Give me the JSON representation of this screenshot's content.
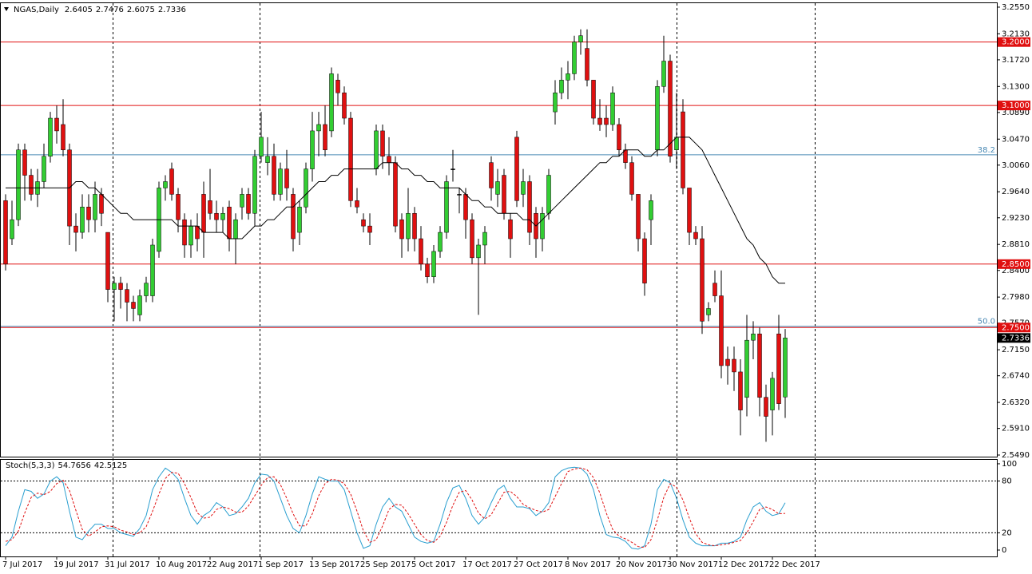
{
  "chart_data": {
    "type": "candlestick",
    "title": "NGAS,Daily",
    "categories": [
      "7 Jul 2017",
      null,
      null,
      null,
      null,
      null,
      null,
      null,
      "19 Jul 2017",
      null,
      null,
      null,
      null,
      null,
      null,
      null,
      "31 Jul 2017",
      null,
      null,
      null,
      null,
      null,
      null,
      null,
      "10 Aug 2017",
      null,
      null,
      null,
      null,
      null,
      null,
      null,
      "22 Aug 2017",
      null,
      null,
      null,
      null,
      null,
      null,
      null,
      "1 Sep 2017",
      null,
      null,
      null,
      null,
      null,
      null,
      null,
      "13 Sep 2017",
      null,
      null,
      null,
      null,
      null,
      null,
      null,
      "25 Sep 2017",
      null,
      null,
      null,
      null,
      null,
      null,
      null,
      "5 Oct 2017",
      null,
      null,
      null,
      null,
      null,
      null,
      null,
      "17 Oct 2017",
      null,
      null,
      null,
      null,
      null,
      null,
      null,
      "27 Oct 2017",
      null,
      null,
      null,
      null,
      null,
      null,
      null,
      "8 Nov 2017",
      null,
      null,
      null,
      null,
      null,
      null,
      null,
      "20 Nov 2017",
      null,
      null,
      null,
      null,
      null,
      null,
      null,
      "30 Nov 2017",
      null,
      null,
      null,
      null,
      null,
      null,
      null,
      "12 Dec 2017",
      null,
      null,
      null,
      null,
      null,
      null,
      null,
      "22 Dec 2017",
      null,
      null
    ],
    "open": [
      2.95,
      2.89,
      2.92,
      3.03,
      2.99,
      2.96,
      2.98,
      3.02,
      3.08,
      3.07,
      3.03,
      2.91,
      2.9,
      2.94,
      2.92,
      2.96,
      2.9,
      2.81,
      2.82,
      2.81,
      2.79,
      2.77,
      2.8,
      2.8,
      2.87,
      2.97,
      3.0,
      2.96,
      2.92,
      2.88,
      2.91,
      2.96,
      2.95,
      2.93,
      2.92,
      2.94,
      2.89,
      2.94,
      2.96,
      2.93,
      3.02,
      3.01,
      3.02,
      2.96,
      3.0,
      2.96,
      2.9,
      2.94,
      3.0,
      3.06,
      3.07,
      3.06,
      3.14,
      3.12,
      3.08,
      2.95,
      2.92,
      2.91,
      3.0,
      3.06,
      3.02,
      3.01,
      2.92,
      2.89,
      2.93,
      2.89,
      2.85,
      2.83,
      2.87,
      2.9,
      3.0,
      2.96,
      2.96,
      2.92,
      2.86,
      2.88,
      3.01,
      2.96,
      2.99,
      2.92,
      3.05,
      2.96,
      2.98,
      2.93,
      2.89,
      2.93,
      3.09,
      3.12,
      3.14,
      3.15,
      3.2,
      3.19,
      3.14,
      3.08,
      3.08,
      3.07,
      3.07,
      3.03,
      3.01,
      2.96,
      2.89,
      2.92,
      3.03,
      3.13,
      3.17,
      3.03,
      3.09,
      2.97,
      2.9,
      2.89,
      2.77,
      2.82,
      2.8,
      2.7,
      2.7,
      2.68,
      2.64,
      2.73,
      2.74,
      2.64,
      2.62,
      2.74,
      2.6405
    ],
    "high": [
      2.96,
      2.95,
      3.04,
      3.04,
      3.0,
      3.0,
      3.04,
      3.09,
      3.1,
      3.11,
      3.04,
      2.93,
      2.96,
      2.96,
      2.98,
      2.97,
      2.9,
      2.83,
      2.83,
      2.82,
      2.8,
      2.81,
      2.83,
      2.89,
      2.98,
      2.99,
      3.01,
      2.97,
      2.93,
      2.92,
      2.93,
      2.98,
      3.0,
      2.95,
      2.94,
      2.95,
      2.93,
      2.97,
      2.97,
      3.03,
      3.09,
      3.05,
      3.04,
      3.01,
      3.03,
      2.97,
      2.95,
      3.01,
      3.09,
      3.09,
      3.1,
      3.16,
      3.15,
      3.13,
      3.09,
      2.97,
      2.93,
      2.93,
      3.07,
      3.07,
      3.05,
      3.02,
      2.93,
      2.97,
      2.94,
      2.91,
      2.86,
      2.88,
      2.91,
      2.99,
      3.03,
      2.97,
      2.97,
      2.93,
      2.89,
      2.91,
      3.02,
      3.0,
      3.0,
      2.93,
      3.06,
      3.0,
      2.99,
      2.94,
      2.94,
      3.0,
      3.14,
      3.16,
      3.17,
      3.21,
      3.22,
      3.22,
      3.14,
      3.11,
      3.1,
      3.13,
      3.08,
      3.04,
      3.02,
      2.96,
      2.9,
      2.96,
      3.14,
      3.21,
      3.18,
      3.12,
      3.11,
      2.97,
      2.91,
      2.91,
      2.79,
      2.84,
      2.84,
      2.72,
      2.72,
      2.7,
      2.77,
      2.76,
      2.75,
      2.66,
      2.68,
      2.77,
      2.7476
    ],
    "low": [
      2.84,
      2.88,
      2.91,
      2.95,
      2.95,
      2.94,
      2.97,
      3.01,
      3.04,
      3.02,
      2.88,
      2.87,
      2.89,
      2.9,
      2.9,
      2.91,
      2.79,
      2.76,
      2.78,
      2.76,
      2.76,
      2.76,
      2.79,
      2.79,
      2.86,
      2.95,
      2.95,
      2.9,
      2.86,
      2.86,
      2.87,
      2.86,
      2.92,
      2.9,
      2.9,
      2.87,
      2.85,
      2.92,
      2.92,
      2.91,
      3.01,
      2.99,
      2.95,
      2.95,
      2.95,
      2.87,
      2.88,
      2.93,
      2.98,
      3.02,
      3.02,
      3.05,
      3.1,
      3.07,
      2.94,
      2.93,
      2.9,
      2.88,
      2.99,
      3.0,
      2.99,
      2.9,
      2.86,
      2.87,
      2.87,
      2.84,
      2.82,
      2.82,
      2.86,
      2.89,
      2.98,
      2.93,
      2.89,
      2.85,
      2.77,
      2.85,
      2.95,
      2.94,
      2.92,
      2.86,
      2.94,
      2.94,
      2.88,
      2.86,
      2.87,
      2.92,
      3.07,
      3.11,
      3.11,
      3.14,
      3.18,
      3.13,
      3.07,
      3.06,
      3.05,
      3.06,
      3.02,
      3.0,
      2.95,
      2.87,
      2.8,
      2.88,
      3.02,
      3.12,
      3.01,
      3.0,
      2.96,
      2.88,
      2.88,
      2.74,
      2.76,
      2.79,
      2.67,
      2.66,
      2.65,
      2.58,
      2.61,
      2.7,
      2.61,
      2.57,
      2.58,
      2.62,
      2.6075
    ],
    "close": [
      2.85,
      2.92,
      3.03,
      2.99,
      2.96,
      2.98,
      3.02,
      3.08,
      3.06,
      3.03,
      2.91,
      2.9,
      2.94,
      2.92,
      2.96,
      2.93,
      2.81,
      2.82,
      2.81,
      2.79,
      2.78,
      2.8,
      2.82,
      2.88,
      2.97,
      2.98,
      2.96,
      2.92,
      2.88,
      2.91,
      2.89,
      2.9,
      2.93,
      2.92,
      2.93,
      2.89,
      2.92,
      2.96,
      2.93,
      3.02,
      3.05,
      3.02,
      2.96,
      3.0,
      2.97,
      2.89,
      2.94,
      3.0,
      3.06,
      3.07,
      3.03,
      3.15,
      3.12,
      3.08,
      2.95,
      2.94,
      2.91,
      2.9,
      3.06,
      3.02,
      3.01,
      2.91,
      2.89,
      2.93,
      2.89,
      2.85,
      2.83,
      2.87,
      2.9,
      2.98,
      3.0,
      2.96,
      2.92,
      2.86,
      2.88,
      2.9,
      2.97,
      2.98,
      2.93,
      2.89,
      2.95,
      2.98,
      2.9,
      2.89,
      2.93,
      2.99,
      3.12,
      3.14,
      3.15,
      3.2,
      3.21,
      3.14,
      3.08,
      3.07,
      3.07,
      3.12,
      3.03,
      3.01,
      2.96,
      2.89,
      2.82,
      2.95,
      3.13,
      3.17,
      3.02,
      3.05,
      2.97,
      2.9,
      2.89,
      2.76,
      2.78,
      2.8,
      2.69,
      2.69,
      2.68,
      2.62,
      2.73,
      2.74,
      2.64,
      2.61,
      2.67,
      2.63,
      2.7336
    ],
    "up_color": "#32cd32",
    "down_color": "#e01010",
    "ma": {
      "color": "#000000",
      "values": [
        2.97,
        2.97,
        2.97,
        2.97,
        2.97,
        2.97,
        2.97,
        2.97,
        2.97,
        2.97,
        2.97,
        2.98,
        2.98,
        2.97,
        2.97,
        2.96,
        2.95,
        2.94,
        2.93,
        2.93,
        2.92,
        2.92,
        2.92,
        2.92,
        2.92,
        2.92,
        2.92,
        2.91,
        2.91,
        2.91,
        2.91,
        2.9,
        2.9,
        2.9,
        2.9,
        2.89,
        2.89,
        2.89,
        2.9,
        2.91,
        2.91,
        2.92,
        2.92,
        2.93,
        2.94,
        2.94,
        2.95,
        2.96,
        2.97,
        2.98,
        2.98,
        2.99,
        2.99,
        3.0,
        3.0,
        3.0,
        3.0,
        3.0,
        3.0,
        3.01,
        3.01,
        3.01,
        3.0,
        3.0,
        2.99,
        2.99,
        2.98,
        2.98,
        2.97,
        2.97,
        2.97,
        2.97,
        2.96,
        2.95,
        2.95,
        2.94,
        2.94,
        2.93,
        2.93,
        2.93,
        2.93,
        2.92,
        2.92,
        2.91,
        2.92,
        2.93,
        2.94,
        2.95,
        2.96,
        2.97,
        2.98,
        2.99,
        3.0,
        3.01,
        3.01,
        3.02,
        3.02,
        3.03,
        3.03,
        3.03,
        3.02,
        3.02,
        3.03,
        3.03,
        3.04,
        3.05,
        3.05,
        3.05,
        3.04,
        3.03,
        3.01,
        2.99,
        2.97,
        2.95,
        2.93,
        2.91,
        2.89,
        2.88,
        2.86,
        2.85,
        2.83,
        2.82,
        2.82
      ]
    },
    "levels": [
      {
        "value": 3.2,
        "label": "3.2000"
      },
      {
        "value": 3.1,
        "label": "3.1000"
      },
      {
        "value": 2.85,
        "label": "2.8500"
      },
      {
        "value": 2.75,
        "label": "2.7500"
      }
    ],
    "level_color": "#e01010",
    "fib": [
      {
        "name": "38.2",
        "value": 3.0223
      },
      {
        "name": "50.0",
        "value": 2.752
      }
    ],
    "fib_color": "#4a8ab5",
    "ylim": [
      2.5465,
      3.2625
    ],
    "yticks": [
      {
        "value": 3.255,
        "label": "3.2550"
      },
      {
        "value": 3.213,
        "label": "3.2130"
      },
      {
        "value": 3.172,
        "label": "3.1720"
      },
      {
        "value": 3.13,
        "label": "3.1300"
      },
      {
        "value": 3.089,
        "label": "3.0890"
      },
      {
        "value": 3.047,
        "label": "3.0470"
      },
      {
        "value": 3.006,
        "label": "3.0060"
      },
      {
        "value": 2.964,
        "label": "2.9640"
      },
      {
        "value": 2.923,
        "label": "2.9230"
      },
      {
        "value": 2.881,
        "label": "2.8810"
      },
      {
        "value": 2.84,
        "label": "2.8400"
      },
      {
        "value": 2.798,
        "label": "2.7980"
      },
      {
        "value": 2.757,
        "label": "2.7570"
      },
      {
        "value": 2.715,
        "label": "2.7150"
      },
      {
        "value": 2.674,
        "label": "2.6740"
      },
      {
        "value": 2.632,
        "label": "2.6320"
      },
      {
        "value": 2.591,
        "label": "2.5910"
      },
      {
        "value": 2.549,
        "label": "2.5490"
      }
    ],
    "indicator": {
      "title": "Stoch(5,3,3)",
      "series": [
        {
          "color": "#2a9fd0",
          "dash": false,
          "values": [
            5,
            15,
            45,
            70,
            68,
            60,
            65,
            80,
            85,
            78,
            45,
            15,
            12,
            22,
            30,
            30,
            25,
            25,
            20,
            18,
            16,
            25,
            40,
            70,
            85,
            95,
            90,
            82,
            60,
            40,
            30,
            40,
            45,
            55,
            50,
            40,
            42,
            50,
            60,
            78,
            88,
            87,
            80,
            60,
            40,
            25,
            20,
            40,
            65,
            85,
            82,
            80,
            80,
            70,
            45,
            20,
            2,
            5,
            30,
            50,
            60,
            50,
            45,
            30,
            15,
            10,
            8,
            10,
            30,
            55,
            72,
            75,
            60,
            40,
            30,
            38,
            55,
            70,
            75,
            60,
            50,
            50,
            48,
            40,
            45,
            55,
            85,
            92,
            95,
            96,
            95,
            88,
            70,
            40,
            18,
            15,
            14,
            10,
            2,
            1,
            5,
            30,
            70,
            82,
            78,
            60,
            35,
            15,
            8,
            5,
            5,
            5,
            8,
            8,
            10,
            15,
            35,
            50,
            55,
            45,
            40,
            42,
            54.7656
          ]
        },
        {
          "color": "#e01010",
          "dash": true,
          "values": [
            10,
            12,
            22,
            43,
            61,
            66,
            64,
            68,
            77,
            81,
            69,
            46,
            24,
            16,
            21,
            27,
            28,
            27,
            23,
            21,
            18,
            20,
            27,
            45,
            65,
            83,
            90,
            89,
            77,
            61,
            43,
            37,
            38,
            47,
            50,
            48,
            44,
            44,
            51,
            63,
            75,
            84,
            85,
            76,
            60,
            42,
            28,
            28,
            42,
            63,
            77,
            82,
            81,
            77,
            65,
            45,
            22,
            9,
            12,
            28,
            47,
            53,
            52,
            42,
            30,
            18,
            11,
            9,
            16,
            32,
            52,
            67,
            69,
            58,
            43,
            36,
            41,
            54,
            67,
            68,
            62,
            53,
            49,
            46,
            44,
            47,
            62,
            77,
            91,
            94,
            95,
            93,
            84,
            66,
            43,
            24,
            16,
            13,
            9,
            4,
            3,
            12,
            35,
            61,
            77,
            73,
            58,
            37,
            19,
            9,
            6,
            5,
            6,
            7,
            9,
            11,
            20,
            33,
            47,
            50,
            47,
            42,
            42.5125
          ]
        }
      ],
      "ylim": [
        -7.4,
        105.5
      ],
      "yticks": [
        0,
        20,
        80,
        100
      ],
      "levels": [
        20,
        80
      ]
    }
  }
}
